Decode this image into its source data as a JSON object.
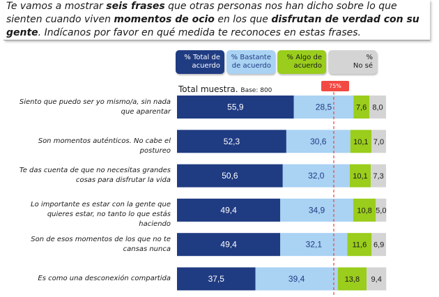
{
  "intro": {
    "part1": "Te vamos a mostrar ",
    "bold1": "seis frases",
    "part2": " que otras personas nos han dicho sobre lo que sienten cuando viven ",
    "bold2": "momentos de ocio",
    "part3": " en los que ",
    "bold3": "disfrutan de verdad con su gente",
    "part4": ". Indícanos por favor en qué medida te reconoces en estas frases."
  },
  "colors": {
    "total": "#1f3b82",
    "bastante": "#a9d2f3",
    "algo": "#9acd1c",
    "nose": "#d4d4d4",
    "reference": "#f24a43"
  },
  "chart_data": {
    "type": "bar",
    "orientation": "horizontal",
    "stacked": true,
    "title": "Total muestra.",
    "subtitle": "Base: 800",
    "reference_line": {
      "value": 75,
      "label": "75%"
    },
    "xlim": [
      0,
      100
    ],
    "categories": [
      "Siento que puedo ser yo mismo/a, sin nada que aparentar",
      "Son momentos auténticos. No cabe el postureo",
      "Te das cuenta de que no necesitas grandes cosas para disfrutar la vida",
      "Lo importante es estar con la gente que quieres estar, no tanto lo que estás haciendo",
      "Son de esos momentos de los que no te cansas nunca",
      "Es como una desconexión compartida"
    ],
    "labels": [
      [
        "55,9",
        "28,5",
        "7,6",
        "8,0"
      ],
      [
        "52,3",
        "30,6",
        "10,1",
        "7,0"
      ],
      [
        "50,6",
        "32,0",
        "10,1",
        "7,3"
      ],
      [
        "49,4",
        "34,9",
        "10,8",
        "5,0"
      ],
      [
        "49,4",
        "32,1",
        "11,6",
        "6,9"
      ],
      [
        "37,5",
        "39,4",
        "13,8",
        "9,4"
      ]
    ],
    "series": [
      {
        "name": "% Total de acuerdo",
        "values": [
          55.9,
          52.3,
          50.6,
          49.4,
          49.4,
          37.5
        ]
      },
      {
        "name": "% Bastante de acuerdo",
        "values": [
          28.5,
          30.6,
          32.0,
          34.9,
          32.1,
          39.4
        ]
      },
      {
        "name": "% Algo de acuerdo",
        "values": [
          7.6,
          10.1,
          10.1,
          10.8,
          11.6,
          13.8
        ]
      },
      {
        "name": "% No sé",
        "values": [
          8.0,
          7.0,
          7.3,
          5.0,
          6.9,
          9.4
        ]
      }
    ]
  },
  "legend": [
    {
      "line1": "% Total de",
      "line2": "acuerdo"
    },
    {
      "line1": "% Bastante",
      "line2": "de acuerdo"
    },
    {
      "line1": "% Algo de",
      "line2": "acuerdo"
    },
    {
      "line1": "%",
      "line2": "No sé"
    }
  ]
}
